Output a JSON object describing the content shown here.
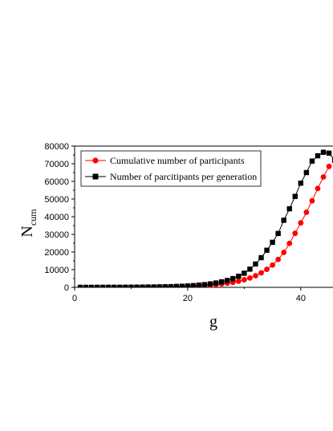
{
  "chart_data": {
    "type": "scatter",
    "xlabel": "g",
    "ylabel_main": "N",
    "ylabel_sub": "cum",
    "xlim": [
      0,
      45.7
    ],
    "ylim": [
      0,
      80000
    ],
    "x_ticks": [
      0,
      20,
      40
    ],
    "y_ticks": [
      0,
      10000,
      20000,
      30000,
      40000,
      50000,
      60000,
      70000,
      80000
    ],
    "grid": false,
    "legend": "top-left",
    "series": [
      {
        "name": "Cumulative number of participants",
        "color": "#ff0000",
        "marker": "circle",
        "x": [
          1,
          2,
          3,
          4,
          5,
          6,
          7,
          8,
          9,
          10,
          11,
          12,
          13,
          14,
          15,
          16,
          17,
          18,
          19,
          20,
          21,
          22,
          23,
          24,
          25,
          26,
          27,
          28,
          29,
          30,
          31,
          32,
          33,
          34,
          35,
          36,
          37,
          38,
          39,
          40,
          41,
          42,
          43,
          44,
          45
        ],
        "y": [
          1,
          3,
          6,
          10,
          15,
          21,
          30,
          40,
          55,
          75,
          95,
          120,
          150,
          185,
          230,
          285,
          350,
          430,
          520,
          630,
          760,
          920,
          1100,
          1330,
          1610,
          1950,
          2370,
          2880,
          3500,
          4300,
          5300,
          6600,
          8200,
          10200,
          12600,
          15800,
          19800,
          24900,
          30600,
          36500,
          42500,
          49000,
          56000,
          62500,
          68500
        ]
      },
      {
        "name": "Number of parcitipants per generation",
        "color": "#000000",
        "marker": "square",
        "x": [
          1,
          2,
          3,
          4,
          5,
          6,
          7,
          8,
          9,
          10,
          11,
          12,
          13,
          14,
          15,
          16,
          17,
          18,
          19,
          20,
          21,
          22,
          23,
          24,
          25,
          26,
          27,
          28,
          29,
          30,
          31,
          32,
          33,
          34,
          35,
          36,
          37,
          38,
          39,
          40,
          41,
          42,
          43,
          44,
          45,
          46
        ],
        "y": [
          1,
          3,
          6,
          10,
          16,
          23,
          32,
          44,
          60,
          80,
          105,
          135,
          170,
          210,
          260,
          320,
          400,
          500,
          620,
          780,
          980,
          1230,
          1550,
          1950,
          2450,
          3100,
          3900,
          4950,
          6300,
          8000,
          10300,
          13200,
          16800,
          21000,
          25500,
          30500,
          38000,
          44500,
          51500,
          59000,
          65000,
          71500,
          74500,
          76500,
          76000,
          72000
        ]
      }
    ]
  }
}
